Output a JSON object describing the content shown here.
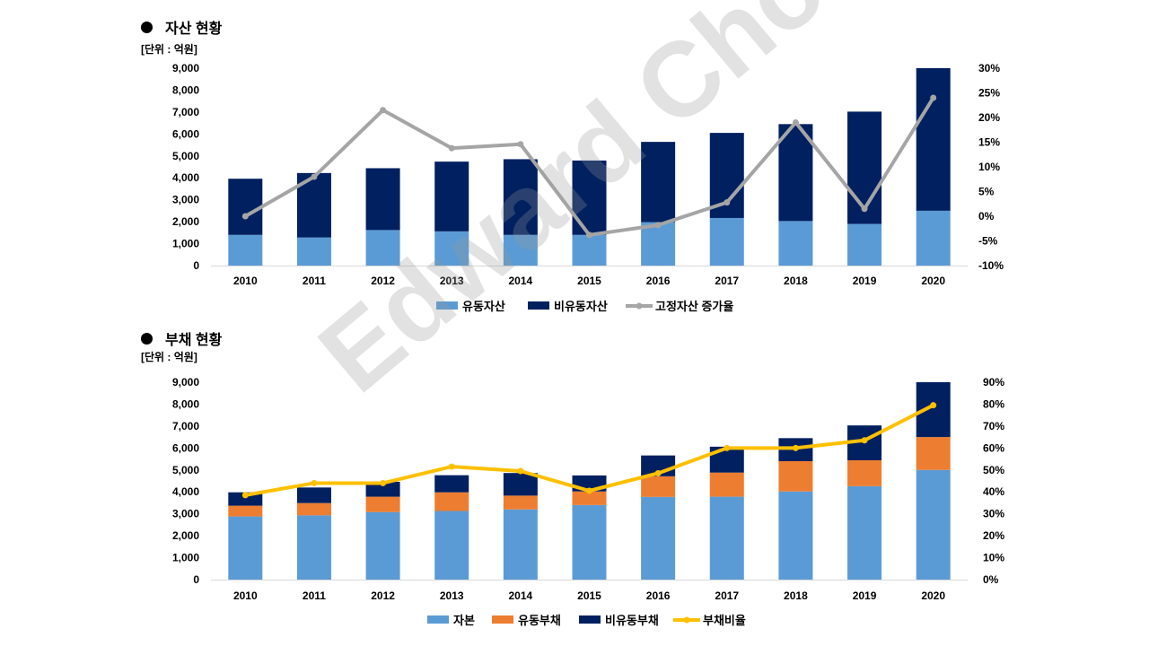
{
  "watermark": "Edward Choi",
  "section1": {
    "title": "자산 현황",
    "unit": "[단위 : 억원]"
  },
  "section2": {
    "title": "부채 현황",
    "unit": "[단위 : 억원]"
  },
  "chart_data": [
    {
      "type": "bar",
      "stacked": true,
      "title": "자산 현황",
      "ylabel": "[단위 : 억원]",
      "categories": [
        "2010",
        "2011",
        "2012",
        "2013",
        "2014",
        "2015",
        "2016",
        "2017",
        "2018",
        "2019",
        "2020"
      ],
      "ylim": [
        0,
        9000
      ],
      "y_ticks": [
        "0",
        "1,000",
        "2,000",
        "3,000",
        "4,000",
        "5,000",
        "6,000",
        "7,000",
        "8,000",
        "9,000"
      ],
      "y2lim": [
        -10,
        30
      ],
      "y2_ticks": [
        "-10%",
        "-5%",
        "0%",
        "5%",
        "10%",
        "15%",
        "20%",
        "25%",
        "30%"
      ],
      "series": [
        {
          "name": "유동자산",
          "kind": "bar",
          "color": "#5B9BD5",
          "values": [
            1400,
            1280,
            1620,
            1560,
            1400,
            1400,
            1980,
            2170,
            2030,
            1900,
            2500
          ]
        },
        {
          "name": "비유동자산",
          "kind": "bar",
          "color": "#002060",
          "values": [
            2560,
            2940,
            2820,
            3180,
            3450,
            3390,
            3660,
            3880,
            4420,
            5120,
            6500
          ]
        },
        {
          "name": "고정자산 증가율",
          "kind": "line",
          "axis": "right",
          "color": "#A5A5A5",
          "values": [
            0,
            8,
            21.5,
            13.8,
            14.6,
            -3.8,
            -1.8,
            2.8,
            19,
            1.5,
            24
          ]
        }
      ],
      "legend": "bottom"
    },
    {
      "type": "bar",
      "stacked": true,
      "title": "부채 현황",
      "ylabel": "[단위 : 억원]",
      "categories": [
        "2010",
        "2011",
        "2012",
        "2013",
        "2014",
        "2015",
        "2016",
        "2017",
        "2018",
        "2019",
        "2020"
      ],
      "ylim": [
        0,
        9000
      ],
      "y_ticks": [
        "0",
        "1,000",
        "2,000",
        "3,000",
        "4,000",
        "5,000",
        "6,000",
        "7,000",
        "8,000",
        "9,000"
      ],
      "y2lim": [
        0,
        90
      ],
      "y2_ticks": [
        "0%",
        "10%",
        "20%",
        "30%",
        "40%",
        "50%",
        "60%",
        "70%",
        "80%",
        "90%"
      ],
      "series": [
        {
          "name": "자본",
          "kind": "bar",
          "color": "#5B9BD5",
          "values": [
            2880,
            2930,
            3080,
            3130,
            3200,
            3400,
            3770,
            3780,
            4020,
            4260,
            5000
          ]
        },
        {
          "name": "유동부채",
          "kind": "bar",
          "color": "#ED7D31",
          "values": [
            490,
            560,
            700,
            850,
            630,
            620,
            940,
            1100,
            1380,
            1180,
            1500
          ]
        },
        {
          "name": "비유동부채",
          "kind": "bar",
          "color": "#002060",
          "values": [
            610,
            710,
            680,
            780,
            1030,
            730,
            950,
            1180,
            1050,
            1590,
            2500
          ]
        },
        {
          "name": "부채비율",
          "kind": "line",
          "axis": "right",
          "color": "#FFC000",
          "values": [
            38.5,
            44,
            44,
            51.5,
            49.5,
            40.5,
            48.5,
            60,
            60,
            63.5,
            79.5
          ]
        }
      ],
      "legend": "bottom"
    }
  ]
}
